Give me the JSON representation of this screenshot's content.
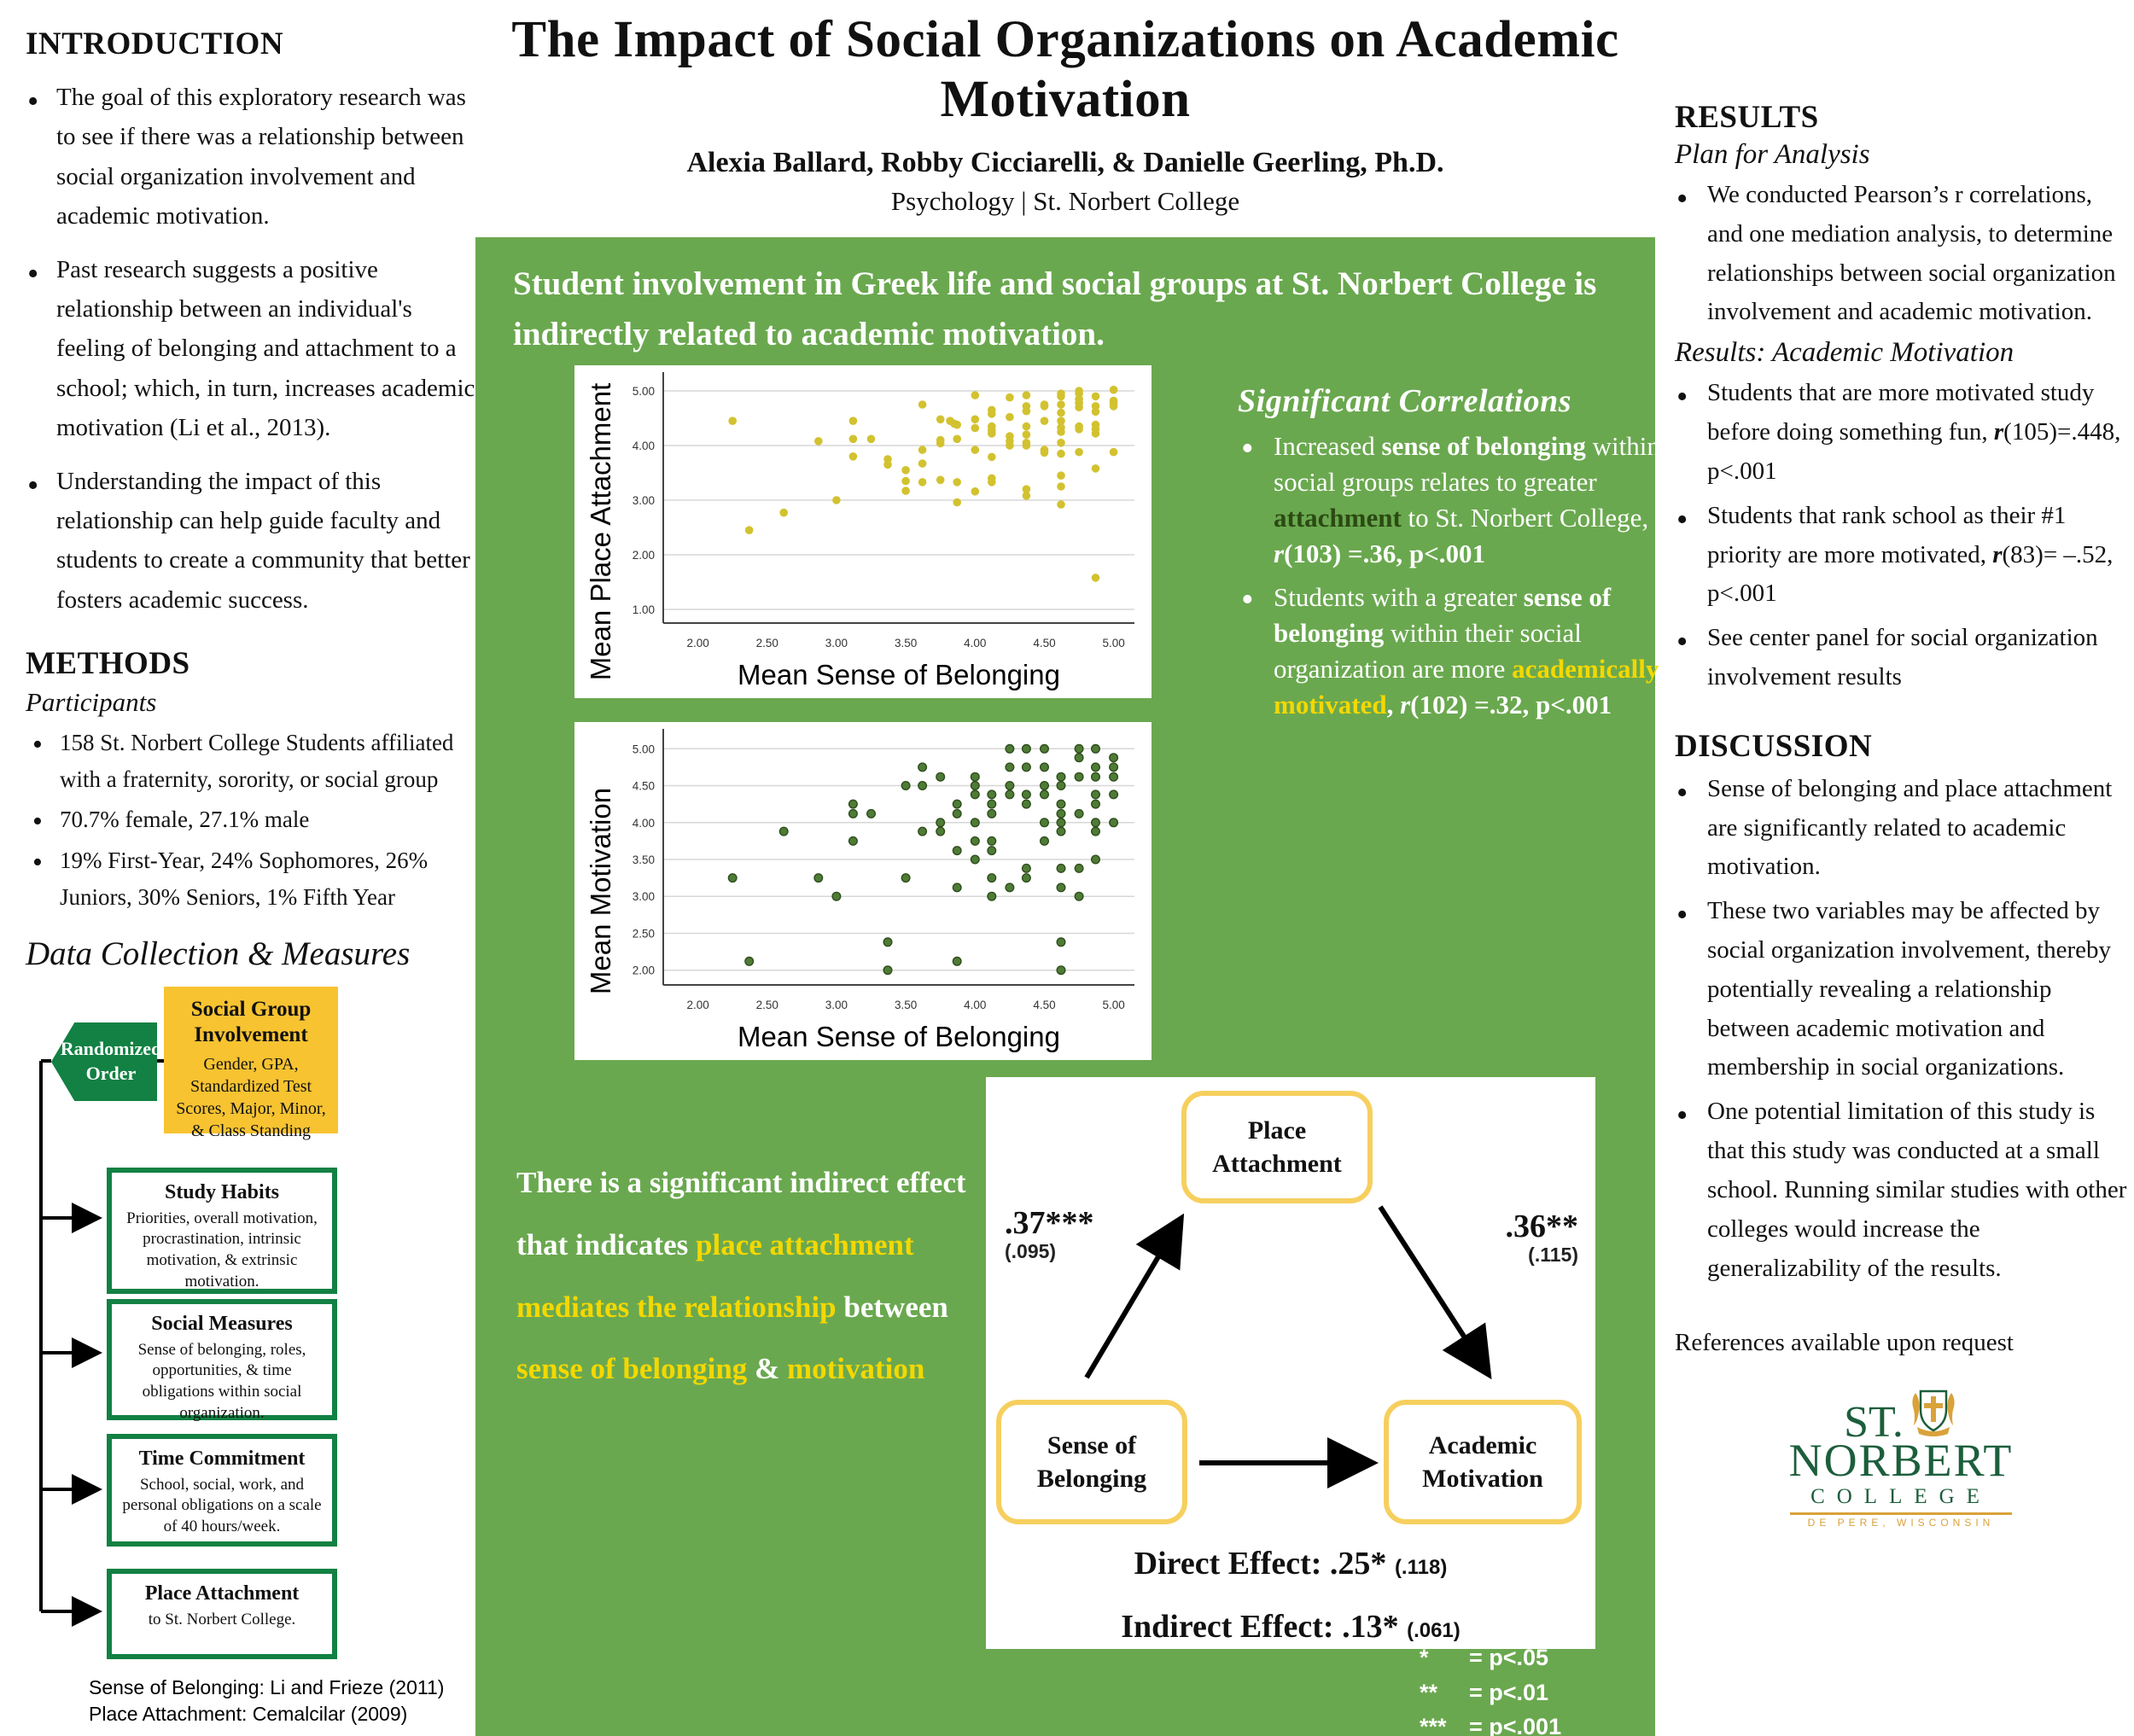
{
  "colors": {
    "panel_green": "#6aa84f",
    "flow_green": "#128143",
    "flow_yellow": "#f7c331",
    "accent_yellow": "#f4d800",
    "attachment_green": "#2b4a12",
    "node_border": "#f6cf5e",
    "dot_yellow": "#d2c22f",
    "dot_green": "#4e7c35",
    "logo_green": "#1c5e3c",
    "logo_gold": "#d9a23a"
  },
  "header": {
    "title": "The Impact of Social Organizations on Academic Motivation",
    "authors": "Alexia Ballard, Robby Cicciarelli, & Danielle Geerling, Ph.D.",
    "affiliation": "Psychology | St. Norbert College"
  },
  "left": {
    "intro_heading": "INTRODUCTION",
    "intro_bullets": [
      "The goal of this exploratory research was to see if there was a relationship between social organization involvement and academic motivation.",
      "Past research suggests a positive relationship between an individual's feeling of belonging and attachment to a school; which, in turn, increases academic motivation (Li et al., 2013).",
      "Understanding the impact of this relationship can help guide faculty and students to create a community that better fosters academic success."
    ],
    "methods_heading": "METHODS",
    "participants_label": "Participants",
    "participant_bullets": [
      "158 St. Norbert College Students affiliated with a fraternity, sorority, or social group",
      "70.7% female, 27.1% male",
      "19% First-Year, 24% Sophomores, 26% Juniors, 30% Seniors, 1% Fifth Year"
    ],
    "data_collection_label": "Data Collection & Measures",
    "flowchart": {
      "randomized": "Randomized Order",
      "social_group": {
        "title": "Social Group Involvement",
        "desc": "Gender, GPA, Standardized Test Scores, Major, Minor, & Class Standing"
      },
      "boxes": [
        {
          "title": "Study Habits",
          "desc": "Priorities, overall motivation, procrastination, intrinsic motivation, & extrinsic motivation."
        },
        {
          "title": "Social Measures",
          "desc": "Sense of belonging, roles, opportunities, & time obligations within social organization."
        },
        {
          "title": "Time Commitment",
          "desc": "School, social, work, and personal obligations on a scale of 40 hours/week."
        },
        {
          "title": "Place Attachment",
          "desc": "to St. Norbert College."
        }
      ]
    },
    "footnote_lines": [
      "Sense of Belonging: Li and Frieze (2011)",
      "Place Attachment: Cemalcilar (2009)"
    ]
  },
  "center": {
    "headline": "Student involvement in Greek life and social groups at St. Norbert College is indirectly related to academic motivation.",
    "correlations": {
      "heading": "Significant Correlations",
      "bullets": [
        [
          {
            "t": "Increased "
          },
          {
            "t": "sense of belonging",
            "c": "b"
          },
          {
            "t": " within social groups relates to greater "
          },
          {
            "t": "attachment",
            "c": "dkleaf"
          },
          {
            "t": " to St. Norbert College, "
          },
          {
            "t": "r",
            "c": "i"
          },
          {
            "t": "(103) =.36, p<.001",
            "c": "b"
          }
        ],
        [
          {
            "t": "Students with a greater "
          },
          {
            "t": "sense of belonging",
            "c": "b"
          },
          {
            "t": " within their social organization are more "
          },
          {
            "t": "academically motivated",
            "c": "yellow"
          },
          {
            "t": ", ",
            "c": "b"
          },
          {
            "t": "r",
            "c": "i"
          },
          {
            "t": "(102) =.32, p<.001",
            "c": "b"
          }
        ]
      ]
    },
    "indirect_statement": [
      {
        "t": "There is a significant indirect effect that indicates "
      },
      {
        "t": "place attachment mediates the relationship",
        "c": "yellow"
      },
      {
        "t": " between "
      },
      {
        "t": "sense of belonging",
        "c": "yellow"
      },
      {
        "t": " & "
      },
      {
        "t": "motivation",
        "c": "yellow"
      }
    ],
    "mediation": {
      "nodes": {
        "top": "Place Attachment",
        "left": "Sense of Belonging",
        "right": "Academic Motivation"
      },
      "a_path": ".37***",
      "a_se": "(.095)",
      "b_path": ".36**",
      "b_se": "(.115)",
      "direct": "Direct Effect: .25*",
      "direct_se": "(.118)",
      "indirect": "Indirect Effect: .13*",
      "indirect_se": "(.061)"
    },
    "legend": [
      {
        "stars": "*",
        "text": "= p<.05"
      },
      {
        "stars": "**",
        "text": "= p<.01"
      },
      {
        "stars": "***",
        "text": "= p<.001"
      }
    ]
  },
  "right": {
    "results_heading": "RESULTS",
    "plan_label": "Plan for Analysis",
    "plan_bullets": [
      "We conducted Pearson’s r correlations, and one mediation analysis, to determine relationships between social organization involvement and academic motivation."
    ],
    "results_sublabel": "Results: Academic Motivation",
    "results_bullets": [
      [
        {
          "t": "Students that are more motivated study before doing something fun, "
        },
        {
          "t": "r",
          "c": "i"
        },
        {
          "t": "(105)=.448, p<.001"
        }
      ],
      [
        {
          "t": "Students that rank school as their #1 priority are more motivated, "
        },
        {
          "t": "r",
          "c": "i"
        },
        {
          "t": "(83)= –.52, p<.001"
        }
      ],
      [
        {
          "t": "See center panel for social organization involvement results"
        }
      ]
    ],
    "discussion_heading": "DISCUSSION",
    "discussion_bullets": [
      "Sense of belonging and place attachment are significantly related to academic motivation.",
      "These two variables may be affected by social organization involvement, thereby potentially revealing a relationship between academic motivation and membership in social organizations.",
      "One potential limitation of this study is that this study was conducted at a small school. Running similar studies with other colleges would increase the generalizability of the results."
    ],
    "references": "References available upon request",
    "logo": {
      "line1": "ST.",
      "line2": "NORBERT",
      "line3": "COLLEGE",
      "line4": "DE PERE, WISCONSIN"
    }
  },
  "chart_data": [
    {
      "type": "scatter",
      "title": "",
      "xlabel": "Mean Sense of Belonging",
      "ylabel": "Mean Place Attachment",
      "xlim": [
        1.75,
        5.15
      ],
      "ylim": [
        0.75,
        5.25
      ],
      "xticks": [
        2,
        2.5,
        3,
        3.5,
        4,
        4.5,
        5
      ],
      "yticks": [
        1,
        2,
        3,
        4,
        5
      ],
      "grid": "horizontal",
      "point_color": "#d2c22f",
      "points": [
        [
          2.25,
          4.45
        ],
        [
          2.37,
          2.45
        ],
        [
          2.62,
          2.77
        ],
        [
          2.87,
          4.08
        ],
        [
          3.0,
          3.0
        ],
        [
          3.12,
          4.45
        ],
        [
          3.12,
          4.12
        ],
        [
          3.12,
          3.8
        ],
        [
          3.25,
          4.12
        ],
        [
          3.37,
          3.75
        ],
        [
          3.37,
          3.65
        ],
        [
          3.5,
          3.55
        ],
        [
          3.5,
          3.35
        ],
        [
          3.5,
          3.17
        ],
        [
          3.62,
          4.75
        ],
        [
          3.62,
          3.92
        ],
        [
          3.62,
          3.67
        ],
        [
          3.62,
          3.33
        ],
        [
          3.75,
          4.48
        ],
        [
          3.75,
          4.1
        ],
        [
          3.75,
          4.04
        ],
        [
          3.75,
          3.37
        ],
        [
          3.82,
          4.45
        ],
        [
          3.85,
          4.4
        ],
        [
          3.87,
          4.38
        ],
        [
          3.87,
          4.12
        ],
        [
          3.87,
          3.33
        ],
        [
          3.87,
          2.96
        ],
        [
          4.0,
          4.92
        ],
        [
          4.0,
          4.48
        ],
        [
          4.0,
          4.32
        ],
        [
          4.0,
          3.92
        ],
        [
          4.0,
          3.16
        ],
        [
          4.12,
          4.65
        ],
        [
          4.12,
          4.58
        ],
        [
          4.12,
          4.35
        ],
        [
          4.12,
          4.28
        ],
        [
          4.12,
          4.22
        ],
        [
          4.12,
          3.79
        ],
        [
          4.12,
          3.4
        ],
        [
          4.12,
          3.33
        ],
        [
          4.25,
          4.88
        ],
        [
          4.25,
          4.52
        ],
        [
          4.25,
          4.17
        ],
        [
          4.25,
          4.08
        ],
        [
          4.25,
          4.0
        ],
        [
          4.37,
          4.92
        ],
        [
          4.37,
          4.72
        ],
        [
          4.37,
          4.63
        ],
        [
          4.37,
          4.35
        ],
        [
          4.37,
          4.2
        ],
        [
          4.37,
          4.05
        ],
        [
          4.37,
          4.0
        ],
        [
          4.37,
          3.2
        ],
        [
          4.37,
          3.08
        ],
        [
          4.5,
          4.75
        ],
        [
          4.5,
          4.72
        ],
        [
          4.5,
          4.45
        ],
        [
          4.5,
          3.92
        ],
        [
          4.5,
          3.87
        ],
        [
          4.62,
          4.95
        ],
        [
          4.62,
          4.9
        ],
        [
          4.62,
          4.75
        ],
        [
          4.62,
          4.6
        ],
        [
          4.62,
          4.45
        ],
        [
          4.62,
          4.33
        ],
        [
          4.62,
          4.25
        ],
        [
          4.62,
          4.05
        ],
        [
          4.62,
          3.85
        ],
        [
          4.62,
          3.45
        ],
        [
          4.62,
          3.25
        ],
        [
          4.62,
          2.92
        ],
        [
          4.75,
          5.0
        ],
        [
          4.75,
          4.95
        ],
        [
          4.75,
          4.85
        ],
        [
          4.75,
          4.78
        ],
        [
          4.75,
          4.7
        ],
        [
          4.75,
          4.35
        ],
        [
          4.75,
          4.3
        ],
        [
          4.75,
          3.88
        ],
        [
          4.87,
          4.9
        ],
        [
          4.87,
          4.72
        ],
        [
          4.87,
          4.62
        ],
        [
          4.87,
          4.38
        ],
        [
          4.87,
          4.3
        ],
        [
          4.87,
          4.22
        ],
        [
          4.87,
          3.58
        ],
        [
          4.87,
          1.58
        ],
        [
          5.0,
          5.02
        ],
        [
          5.0,
          4.82
        ],
        [
          5.0,
          4.78
        ],
        [
          5.0,
          4.72
        ],
        [
          5.0,
          3.88
        ]
      ]
    },
    {
      "type": "scatter",
      "title": "",
      "xlabel": "Mean Sense of Belonging",
      "ylabel": "Mean Motivation",
      "xlim": [
        1.75,
        5.15
      ],
      "ylim": [
        1.8,
        5.2
      ],
      "xticks": [
        2,
        2.5,
        3,
        3.5,
        4,
        4.5,
        5
      ],
      "yticks": [
        2,
        2.5,
        3,
        3.5,
        4,
        4.5,
        5
      ],
      "grid": "horizontal",
      "point_color": "#4e7c35",
      "point_stroke": "#2f4d1d",
      "points": [
        [
          2.25,
          3.25
        ],
        [
          2.37,
          2.12
        ],
        [
          2.62,
          3.88
        ],
        [
          2.87,
          3.25
        ],
        [
          3.0,
          3.0
        ],
        [
          3.12,
          4.25
        ],
        [
          3.12,
          4.12
        ],
        [
          3.12,
          3.75
        ],
        [
          3.25,
          4.12
        ],
        [
          3.37,
          2.38
        ],
        [
          3.37,
          2.0
        ],
        [
          3.5,
          4.5
        ],
        [
          3.5,
          3.25
        ],
        [
          3.62,
          4.75
        ],
        [
          3.62,
          4.5
        ],
        [
          3.62,
          3.88
        ],
        [
          3.75,
          4.62
        ],
        [
          3.75,
          4.0
        ],
        [
          3.75,
          3.88
        ],
        [
          3.87,
          4.25
        ],
        [
          3.87,
          4.12
        ],
        [
          3.87,
          3.62
        ],
        [
          3.87,
          3.12
        ],
        [
          3.87,
          2.12
        ],
        [
          4.0,
          4.62
        ],
        [
          4.0,
          4.5
        ],
        [
          4.0,
          4.38
        ],
        [
          4.0,
          4.0
        ],
        [
          4.0,
          3.75
        ],
        [
          4.0,
          3.5
        ],
        [
          4.12,
          4.38
        ],
        [
          4.12,
          4.25
        ],
        [
          4.12,
          4.12
        ],
        [
          4.12,
          3.75
        ],
        [
          4.12,
          3.62
        ],
        [
          4.12,
          3.25
        ],
        [
          4.12,
          3.0
        ],
        [
          4.25,
          5.0
        ],
        [
          4.25,
          4.75
        ],
        [
          4.25,
          4.5
        ],
        [
          4.25,
          4.38
        ],
        [
          4.25,
          3.12
        ],
        [
          4.37,
          5.0
        ],
        [
          4.37,
          4.75
        ],
        [
          4.37,
          4.38
        ],
        [
          4.37,
          4.25
        ],
        [
          4.37,
          3.38
        ],
        [
          4.37,
          3.25
        ],
        [
          4.5,
          5.0
        ],
        [
          4.5,
          4.75
        ],
        [
          4.5,
          4.5
        ],
        [
          4.5,
          4.38
        ],
        [
          4.5,
          4.0
        ],
        [
          4.5,
          3.75
        ],
        [
          4.62,
          4.62
        ],
        [
          4.62,
          4.5
        ],
        [
          4.62,
          4.25
        ],
        [
          4.62,
          4.12
        ],
        [
          4.62,
          4.0
        ],
        [
          4.62,
          3.88
        ],
        [
          4.62,
          3.38
        ],
        [
          4.62,
          3.12
        ],
        [
          4.62,
          2.38
        ],
        [
          4.62,
          2.0
        ],
        [
          4.75,
          5.0
        ],
        [
          4.75,
          4.88
        ],
        [
          4.75,
          4.62
        ],
        [
          4.75,
          4.12
        ],
        [
          4.75,
          3.38
        ],
        [
          4.75,
          3.0
        ],
        [
          4.87,
          5.0
        ],
        [
          4.87,
          4.75
        ],
        [
          4.87,
          4.62
        ],
        [
          4.87,
          4.38
        ],
        [
          4.87,
          4.25
        ],
        [
          4.87,
          4.0
        ],
        [
          4.87,
          3.88
        ],
        [
          4.87,
          3.5
        ],
        [
          5.0,
          4.88
        ],
        [
          5.0,
          4.75
        ],
        [
          5.0,
          4.62
        ],
        [
          5.0,
          4.38
        ],
        [
          5.0,
          4.0
        ]
      ]
    }
  ]
}
